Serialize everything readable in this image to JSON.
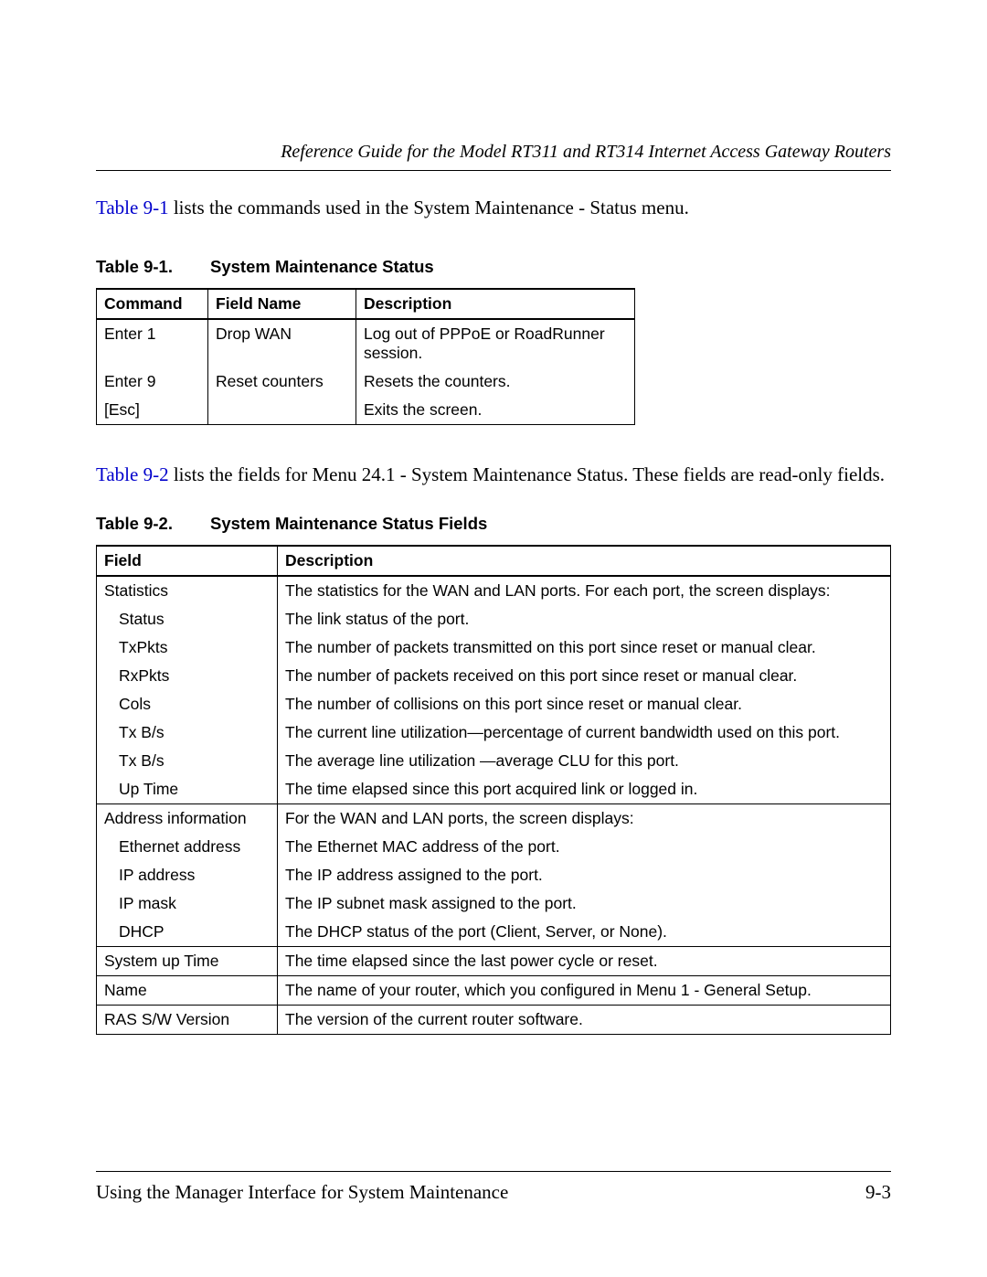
{
  "runningHead": "Reference Guide for the Model RT311 and RT314 Internet Access Gateway Routers",
  "intro1_xref": "Table 9-1",
  "intro1_rest": " lists the commands used in the System Maintenance - Status menu.",
  "caption1_num": "Table 9-1.",
  "caption1_title": "System Maintenance Status",
  "t1": {
    "h1": "Command",
    "h2": "Field Name",
    "h3": "Description",
    "r1c1": "Enter 1",
    "r1c2": "Drop WAN",
    "r1c3": "Log out of PPPoE or RoadRunner session.",
    "r2c1": "Enter 9",
    "r2c2": "Reset counters",
    "r2c3": "Resets the counters.",
    "r3c1": "[Esc]",
    "r3c2": "",
    "r3c3": "Exits the screen."
  },
  "intro2_xref": "Table 9-2",
  "intro2_rest": " lists the fields for Menu 24.1 - System Maintenance Status. These fields are read-only fields.",
  "caption2_num": "Table 9-2.",
  "caption2_title": "System Maintenance Status Fields",
  "t2": {
    "h1": "Field",
    "h2": "Description",
    "r1c1": "Statistics",
    "r1c2": "The statistics for the WAN and LAN ports. For each port, the screen displays:",
    "r2c1": "Status",
    "r2c2": "The link status of the port.",
    "r3c1": "TxPkts",
    "r3c2": "The number of packets transmitted on this port since reset or manual clear.",
    "r4c1": "RxPkts",
    "r4c2": "The number of packets received on this port since reset or manual clear.",
    "r5c1": "Cols",
    "r5c2": "The number of collisions on this port since reset or manual clear.",
    "r6c1": "Tx B/s",
    "r6c2": "The current line utilization—percentage of current bandwidth used on this port.",
    "r7c1": "Tx B/s",
    "r7c2": "The average line utilization —average CLU for this port.",
    "r8c1": "Up Time",
    "r8c2": "The time elapsed since this port acquired link or logged in.",
    "r9c1": "Address information",
    "r9c2": "For the WAN and LAN ports, the screen displays:",
    "r10c1": "Ethernet address",
    "r10c2": "The Ethernet MAC address of the port.",
    "r11c1": "IP address",
    "r11c2": "The IP address assigned to the port.",
    "r12c1": "IP mask",
    "r12c2": "The IP subnet mask assigned to the port.",
    "r13c1": "DHCP",
    "r13c2": "The DHCP status of the port (Client, Server, or None).",
    "r14c1": "System up Time",
    "r14c2": "The time elapsed since the last power cycle or reset.",
    "r15c1": "Name",
    "r15c2": "The name of your router, which you configured in Menu 1 - General Setup.",
    "r16c1": "RAS S/W Version",
    "r16c2": "The version of the current router software."
  },
  "footerLeft": "Using the Manager Interface for System Maintenance",
  "footerRight": "9-3"
}
